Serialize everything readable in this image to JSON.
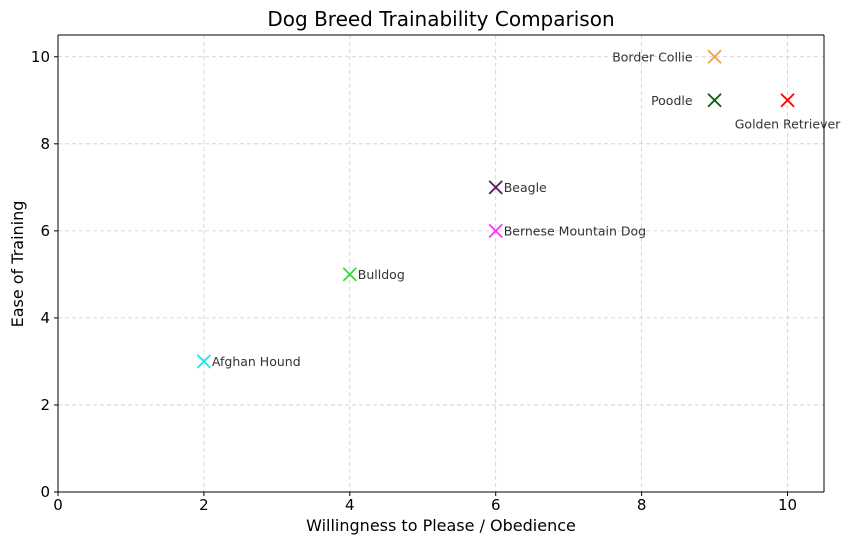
{
  "chart_data": {
    "type": "scatter",
    "title": "Dog Breed Trainability Comparison",
    "xlabel": "Willingness to Please / Obedience",
    "ylabel": "Ease of Training",
    "xlim": [
      0,
      10.5
    ],
    "ylim": [
      0,
      10.5
    ],
    "xticks": [
      0,
      2,
      4,
      6,
      8,
      10
    ],
    "yticks": [
      0,
      2,
      4,
      6,
      8,
      10
    ],
    "grid": true,
    "marker": "x",
    "points": [
      {
        "label": "Border Collie",
        "x": 9,
        "y": 10,
        "color": "#f5a142",
        "label_side": "left"
      },
      {
        "label": "Poodle",
        "x": 9,
        "y": 9,
        "color": "#006400",
        "label_side": "left"
      },
      {
        "label": "Golden Retriever",
        "x": 10,
        "y": 9,
        "color": "#ff0000",
        "label_side": "below"
      },
      {
        "label": "Beagle",
        "x": 6,
        "y": 7,
        "color": "#5c1a5c",
        "label_side": "right"
      },
      {
        "label": "Bernese Mountain Dog",
        "x": 6,
        "y": 6,
        "color": "#ff33ff",
        "label_side": "right"
      },
      {
        "label": "Bulldog",
        "x": 4,
        "y": 5,
        "color": "#33dd33",
        "label_side": "right"
      },
      {
        "label": "Afghan Hound",
        "x": 2,
        "y": 3,
        "color": "#22e5e5",
        "label_side": "right"
      }
    ]
  }
}
